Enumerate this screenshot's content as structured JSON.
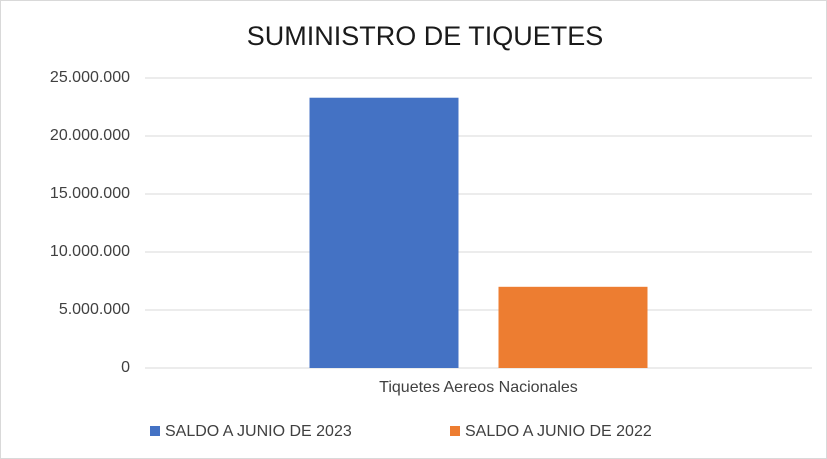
{
  "chart_data": {
    "type": "bar",
    "title": "SUMINISTRO DE TIQUETES",
    "categories": [
      "Tiquetes Aereos Nacionales"
    ],
    "series": [
      {
        "name": "SALDO A JUNIO DE 2023",
        "color": "#4472c4",
        "values": [
          23300000
        ]
      },
      {
        "name": "SALDO A JUNIO DE 2022",
        "color": "#ed7d31",
        "values": [
          7000000
        ]
      }
    ],
    "ylim": [
      0,
      25000000
    ],
    "yticks": [
      0,
      {
        "value": 5000000,
        "label": "5.000.000"
      },
      {
        "value": 10000000,
        "label": "10.000.000"
      },
      {
        "value": 15000000,
        "label": "15.000.000"
      },
      {
        "value": 20000000,
        "label": "20.000.000"
      },
      {
        "value": 25000000,
        "label": "25.000.000"
      }
    ],
    "grid": true,
    "legend": "bottom"
  }
}
